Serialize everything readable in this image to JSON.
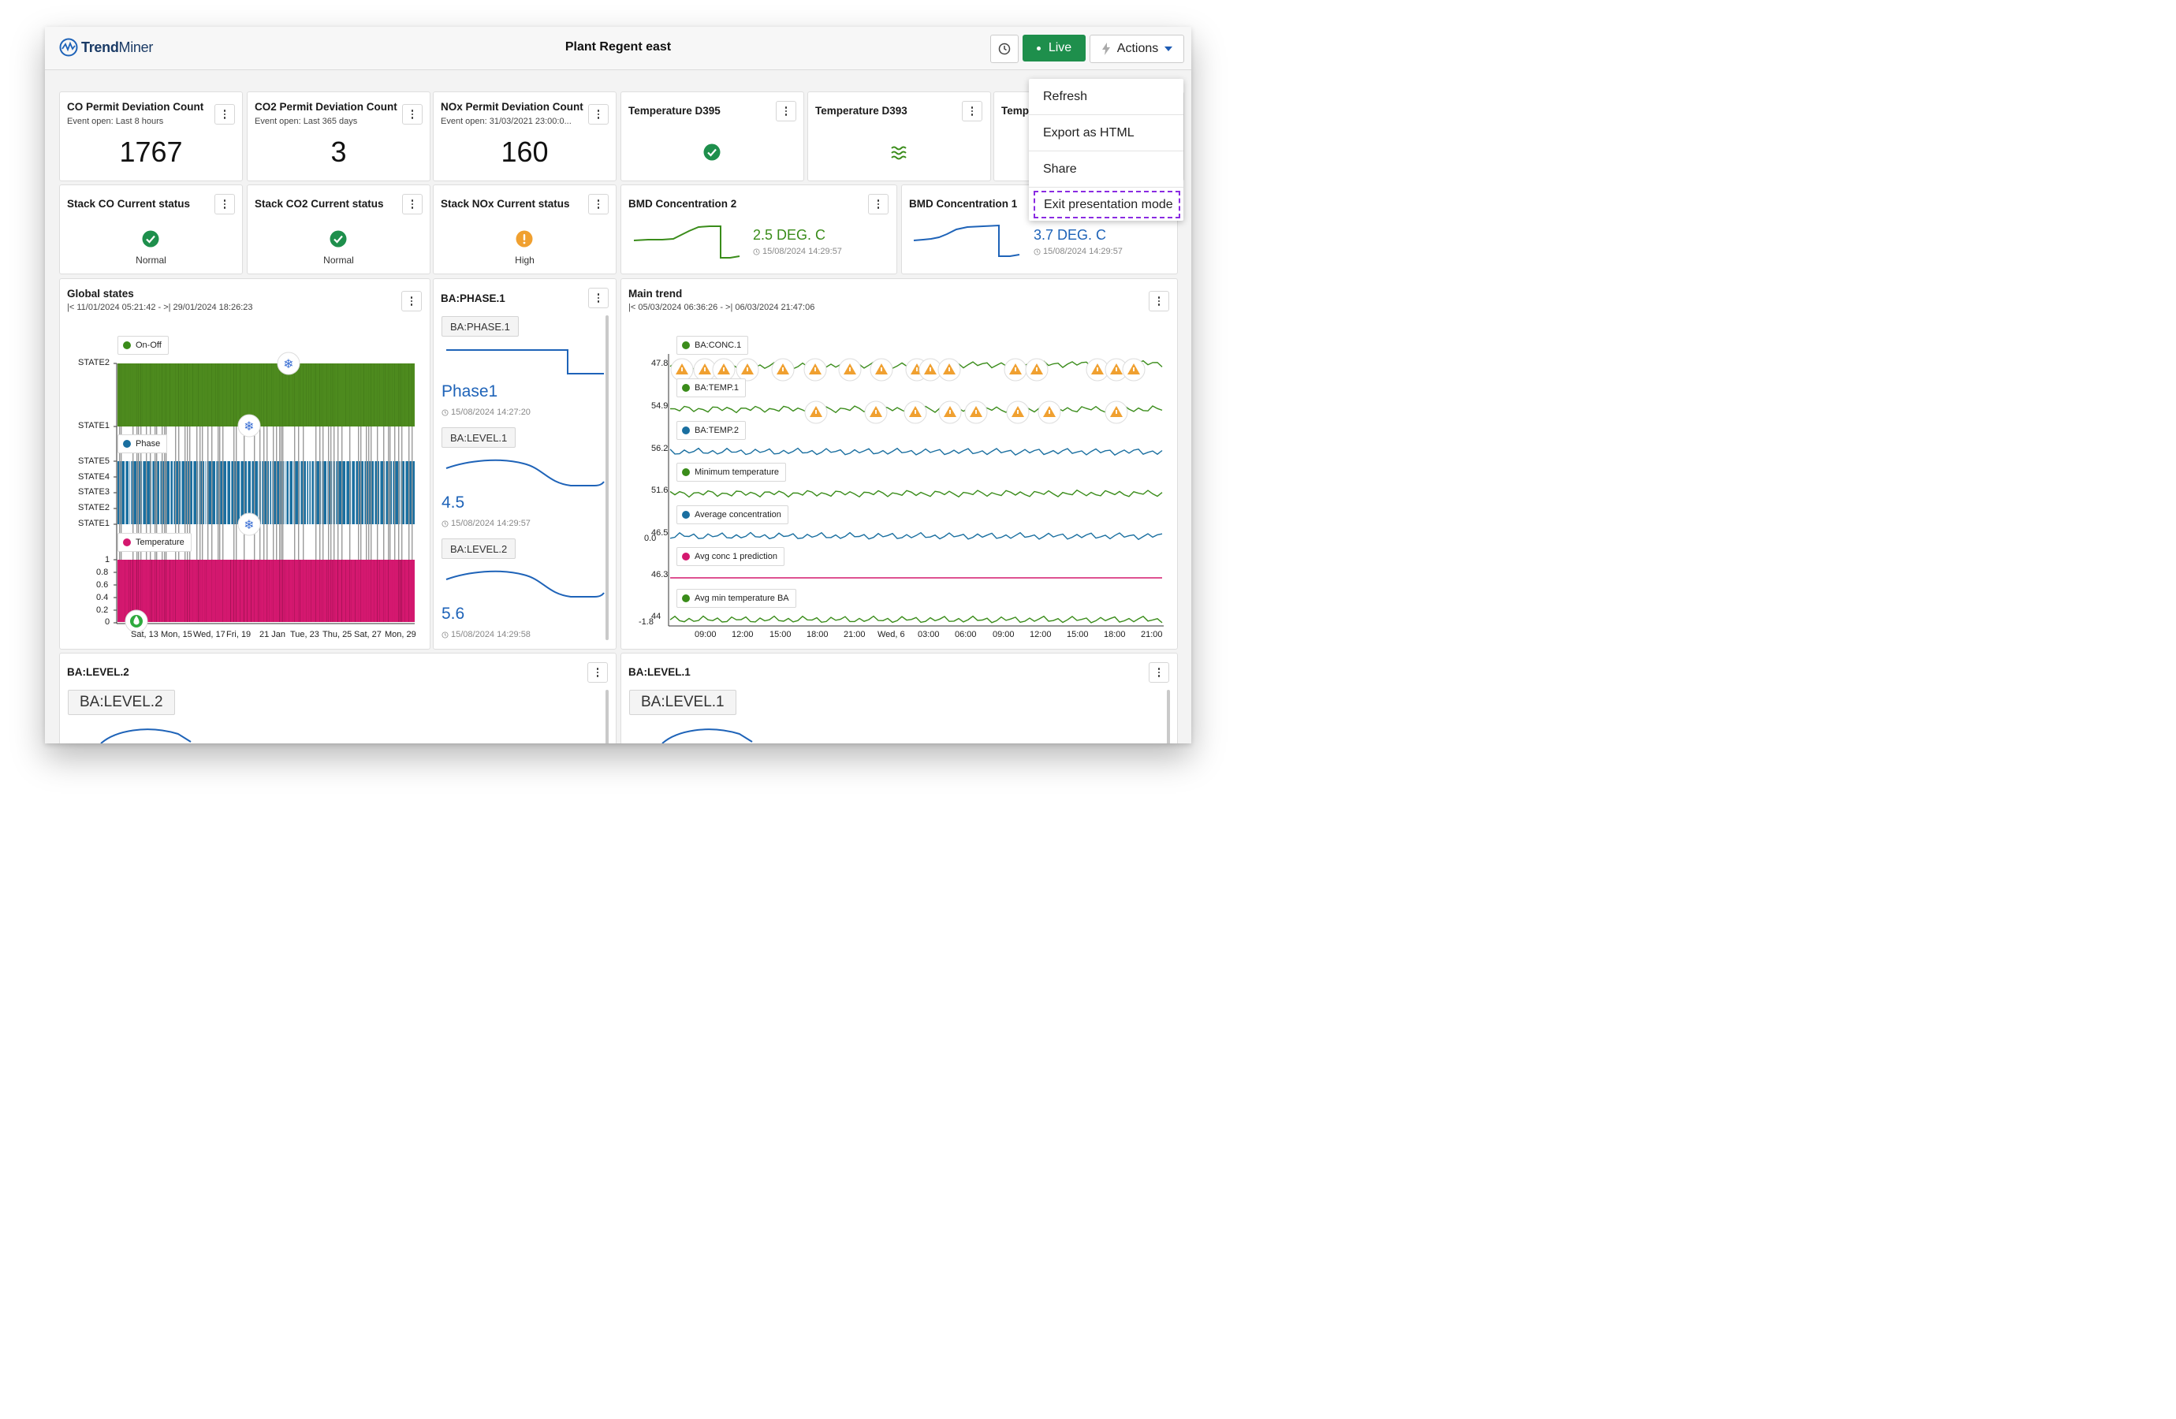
{
  "app": {
    "logo_bold": "Trend",
    "logo_light": "Miner",
    "title": "Plant Regent east"
  },
  "toolbar": {
    "live_label": "Live",
    "actions_label": "Actions"
  },
  "actions_menu": {
    "items": [
      "Refresh",
      "Export as HTML",
      "Share",
      "Exit presentation mode"
    ],
    "highlighted": "Exit presentation mode"
  },
  "count_tiles": [
    {
      "title": "CO Permit Deviation Count",
      "subtitle": "Event open: Last 8 hours",
      "value": "1767"
    },
    {
      "title": "CO2 Permit Deviation Count",
      "subtitle": "Event open: Last 365 days",
      "value": "3"
    },
    {
      "title": "NOx Permit Deviation Count",
      "subtitle": "Event open: 31/03/2021 23:00:0...",
      "value": "160"
    }
  ],
  "temp_tiles": [
    {
      "title": "Temperature D395",
      "icon": "check-circle-icon",
      "color": "#1e8f4c"
    },
    {
      "title": "Temperature D393",
      "icon": "wave-icon",
      "color": "#3a8c1a"
    },
    {
      "title": "Temp",
      "icon": "none"
    }
  ],
  "status_tiles": [
    {
      "title": "Stack CO Current status",
      "status": "Normal",
      "color": "#1e8f4c"
    },
    {
      "title": "Stack CO2 Current status",
      "status": "Normal",
      "color": "#1e8f4c"
    },
    {
      "title": "Stack NOx Current status",
      "status": "High",
      "color": "#f0a030"
    }
  ],
  "bmd_tiles": [
    {
      "title": "BMD Concentration 2",
      "value": "2.5 DEG. C",
      "timestamp": "15/08/2024 14:29:57",
      "color": "#3a8c1a"
    },
    {
      "title": "BMD Concentration 1",
      "value": "3.7 DEG. C",
      "timestamp": "15/08/2024 14:29:57",
      "color": "#1e63b8"
    }
  ],
  "global_states": {
    "title": "Global states",
    "range": "|< 11/01/2024 05:21:42 - >| 29/01/2024 18:26:23",
    "legends": [
      "On-Off",
      "Phase",
      "Temperature"
    ],
    "y_labels_top": [
      "STATE2",
      "STATE1"
    ],
    "y_labels_phase": [
      "STATE5",
      "STATE4",
      "STATE3",
      "STATE2",
      "STATE1"
    ],
    "y_labels_temp": [
      "1",
      "0.8",
      "0.6",
      "0.4",
      "0.2",
      "0"
    ],
    "x_labels": [
      "Sat, 13",
      "Mon, 15",
      "Wed, 17",
      "Fri, 19",
      "21 Jan",
      "Tue, 23",
      "Thu, 25",
      "Sat, 27",
      "Mon, 29"
    ],
    "colors": {
      "onoff": "#4d8a1e",
      "phase": "#1a6fa0",
      "temp": "#d4186f",
      "gaps": "#9a9a9a"
    }
  },
  "ba_phase": {
    "title": "BA:PHASE.1",
    "blocks": [
      {
        "tag": "BA:PHASE.1",
        "value": "Phase1",
        "timestamp": "15/08/2024 14:27:20"
      },
      {
        "tag": "BA:LEVEL.1",
        "value": "4.5",
        "timestamp": "15/08/2024 14:29:57"
      },
      {
        "tag": "BA:LEVEL.2",
        "value": "5.6",
        "timestamp": "15/08/2024 14:29:58"
      }
    ]
  },
  "main_trend": {
    "title": "Main trend",
    "range": "|< 05/03/2024 06:36:26 - >| 06/03/2024 21:47:06",
    "series": [
      {
        "name": "BA:CONC.1",
        "color": "#3a8c1a",
        "level": "47.8"
      },
      {
        "name": "BA:TEMP.1",
        "color": "#3a8c1a",
        "level": "54.9"
      },
      {
        "name": "BA:TEMP.2",
        "color": "#1a6fa0",
        "level": "56.2"
      },
      {
        "name": "Minimum temperature",
        "color": "#3a8c1a",
        "level": "51.6"
      },
      {
        "name": "Average concentration",
        "color": "#1a6fa0",
        "level": "46.5"
      },
      {
        "name": "Avg conc 1 prediction",
        "color": "#d4186f",
        "level": "46.3"
      },
      {
        "name": "Avg min temperature BA",
        "color": "#3a8c1a",
        "level": "44"
      }
    ],
    "x_labels": [
      "09:00",
      "12:00",
      "15:00",
      "18:00",
      "21:00",
      "Wed, 6",
      "03:00",
      "06:00",
      "09:00",
      "12:00",
      "15:00",
      "18:00",
      "21:00"
    ],
    "extra_labels": [
      "0.0",
      "-1.8"
    ]
  },
  "bottom_tiles": [
    {
      "title": "BA:LEVEL.2",
      "tag": "BA:LEVEL.2"
    },
    {
      "title": "BA:LEVEL.1",
      "tag": "BA:LEVEL.1"
    }
  ]
}
